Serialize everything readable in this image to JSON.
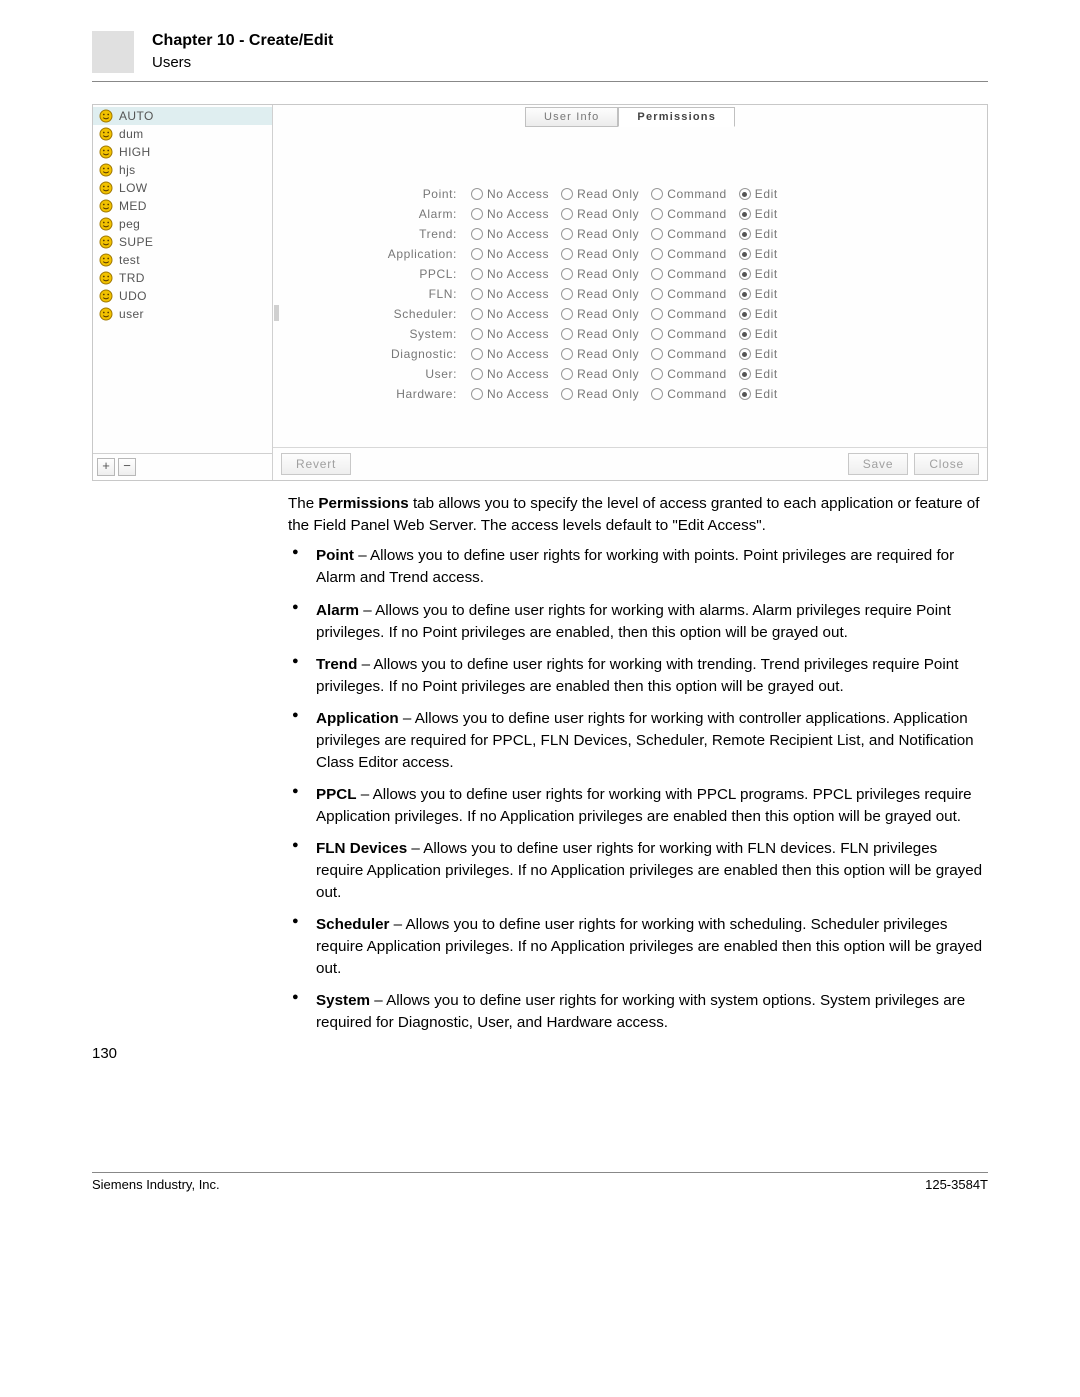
{
  "header": {
    "chapter": "Chapter 10 - Create/Edit",
    "section": "Users"
  },
  "ui": {
    "users": [
      "AUTO",
      "dum",
      "HIGH",
      "hjs",
      "LOW",
      "MED",
      "peg",
      "SUPE",
      "test",
      "TRD",
      "UDO",
      "user"
    ],
    "selected_user_index": 0,
    "icon_colors": {
      "fill": "#f2c200",
      "stroke": "#a07800"
    },
    "tabs": {
      "user_info": "User Info",
      "permissions": "Permissions"
    },
    "active_tab": "permissions",
    "permission_rows": [
      "Point",
      "Alarm",
      "Trend",
      "Application",
      "PPCL",
      "FLN",
      "Scheduler",
      "System",
      "Diagnostic",
      "User",
      "Hardware"
    ],
    "permission_options": [
      "No Access",
      "Read Only",
      "Command",
      "Edit"
    ],
    "selected_option_index": 3,
    "buttons": {
      "revert": "Revert",
      "save": "Save",
      "close": "Close",
      "add": "+",
      "remove": "−"
    }
  },
  "text": {
    "intro_pre": "The ",
    "intro_strong": "Permissions",
    "intro_post": " tab allows you to specify the level of access granted to each application or feature of the Field Panel Web Server. The access levels default to \"Edit Access\".",
    "items": [
      {
        "term": "Point",
        "desc": " – Allows you to define user rights for working with points. Point privileges are required for Alarm and Trend access."
      },
      {
        "term": "Alarm",
        "desc": " – Allows you to define user rights for working with alarms. Alarm privileges require Point privileges. If no Point privileges are enabled, then this option will be grayed out."
      },
      {
        "term": "Trend",
        "desc": " – Allows you to define user rights for working with trending. Trend privileges require Point privileges. If no Point privileges are enabled then this option will be grayed out."
      },
      {
        "term": "Application",
        "desc": " – Allows you to define user rights for working with controller applications. Application privileges are required for PPCL, FLN Devices, Scheduler, Remote Recipient List, and Notification Class Editor access."
      },
      {
        "term": "PPCL",
        "desc": " – Allows you to define user rights for working with PPCL programs. PPCL privileges require Application privileges. If no Application privileges are enabled then this option will be grayed out."
      },
      {
        "term": "FLN Devices",
        "desc": " – Allows you to define user rights for working with FLN devices. FLN privileges require Application privileges. If no Application privileges are enabled then this option will be grayed out."
      },
      {
        "term": "Scheduler",
        "desc": " – Allows you to define user rights for working with scheduling. Scheduler privileges require Application privileges. If no Application privileges are enabled then this option will be grayed out."
      },
      {
        "term": "System",
        "desc": " – Allows you to define user rights for working with system options. System privileges are required for Diagnostic, User, and Hardware access."
      }
    ]
  },
  "footer": {
    "page": "130",
    "company": "Siemens Industry, Inc.",
    "docnum": "125-3584T"
  }
}
